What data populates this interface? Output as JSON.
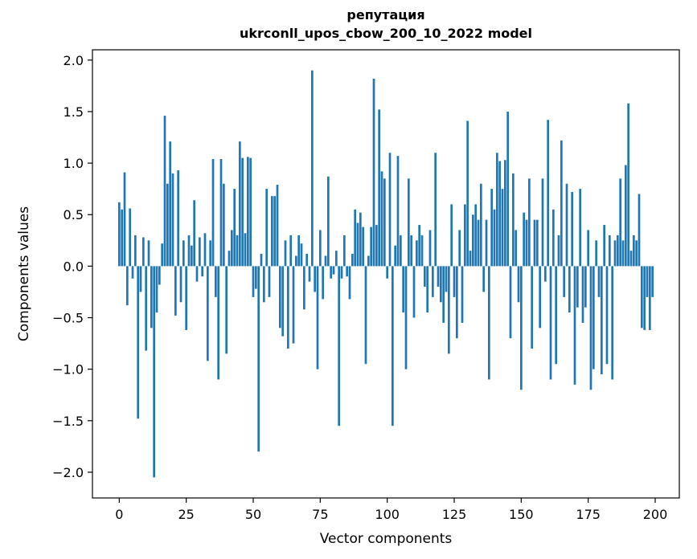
{
  "chart_data": {
    "type": "bar",
    "title": "репутация",
    "subtitle": "ukrconll_upos_cbow_200_10_2022 model",
    "xlabel": "Vector components",
    "ylabel": "Components values",
    "xlim": [
      -10,
      209
    ],
    "ylim": [
      -2.25,
      2.1
    ],
    "xticks": [
      0,
      25,
      50,
      75,
      100,
      125,
      150,
      175,
      200
    ],
    "yticks": [
      -2.0,
      -1.5,
      -1.0,
      -0.5,
      0.0,
      0.5,
      1.0,
      1.5,
      2.0
    ],
    "grid": false,
    "legend": null,
    "bar_color": "#1f77b4",
    "spine_color": "#000000",
    "x_note": "x value equals the index of each entry in values (vector component 0..199)",
    "values": [
      0.62,
      0.55,
      0.91,
      -0.38,
      0.56,
      -0.12,
      0.3,
      -1.48,
      -0.25,
      0.28,
      -0.82,
      0.25,
      -0.6,
      -2.05,
      -0.45,
      -0.18,
      0.22,
      1.46,
      0.8,
      1.21,
      0.9,
      -0.48,
      0.93,
      -0.35,
      0.25,
      -0.62,
      0.3,
      0.2,
      0.64,
      -0.15,
      0.28,
      -0.1,
      0.32,
      -0.92,
      0.25,
      1.04,
      -0.3,
      -1.1,
      1.04,
      0.8,
      -0.85,
      0.15,
      0.35,
      0.75,
      0.3,
      1.21,
      1.05,
      0.32,
      1.06,
      1.05,
      -0.3,
      -0.22,
      -1.8,
      0.12,
      -0.35,
      0.75,
      -0.3,
      0.68,
      0.68,
      0.79,
      -0.6,
      -0.68,
      0.25,
      -0.8,
      0.3,
      -0.75,
      0.1,
      0.3,
      0.22,
      -0.42,
      0.12,
      -0.15,
      1.9,
      -0.25,
      -1.0,
      0.35,
      -0.32,
      0.1,
      0.87,
      -0.12,
      -0.08,
      0.15,
      -1.55,
      -0.12,
      0.3,
      -0.1,
      -0.32,
      0.12,
      0.55,
      0.42,
      0.52,
      0.38,
      -0.95,
      0.1,
      0.38,
      1.82,
      0.4,
      1.52,
      0.92,
      0.85,
      -0.12,
      1.1,
      -1.55,
      0.2,
      1.07,
      0.3,
      -0.45,
      -1.0,
      0.85,
      0.3,
      -0.5,
      0.25,
      0.4,
      0.3,
      -0.2,
      -0.45,
      0.35,
      -0.3,
      1.1,
      -0.2,
      -0.35,
      -0.55,
      -0.25,
      -0.85,
      0.6,
      -0.3,
      -0.7,
      0.35,
      -0.55,
      0.6,
      1.41,
      0.15,
      0.5,
      0.6,
      0.45,
      0.8,
      -0.25,
      0.45,
      -1.1,
      0.75,
      0.55,
      1.1,
      1.02,
      0.75,
      1.03,
      1.5,
      -0.7,
      0.9,
      0.35,
      -0.35,
      -1.2,
      0.52,
      0.45,
      0.85,
      -0.8,
      0.45,
      0.45,
      -0.6,
      0.85,
      -0.15,
      1.42,
      -1.1,
      0.55,
      -0.95,
      0.3,
      1.22,
      -0.3,
      0.8,
      -0.45,
      0.72,
      -1.15,
      -0.4,
      0.75,
      -0.55,
      -0.4,
      0.35,
      -1.2,
      -1.0,
      0.25,
      -0.3,
      -1.05,
      0.4,
      -0.95,
      0.3,
      -1.1,
      0.25,
      0.3,
      0.85,
      0.25,
      0.98,
      1.58,
      0.15,
      0.3,
      0.25,
      0.7,
      -0.6,
      -0.62,
      -0.3,
      -0.62,
      -0.3
    ]
  }
}
